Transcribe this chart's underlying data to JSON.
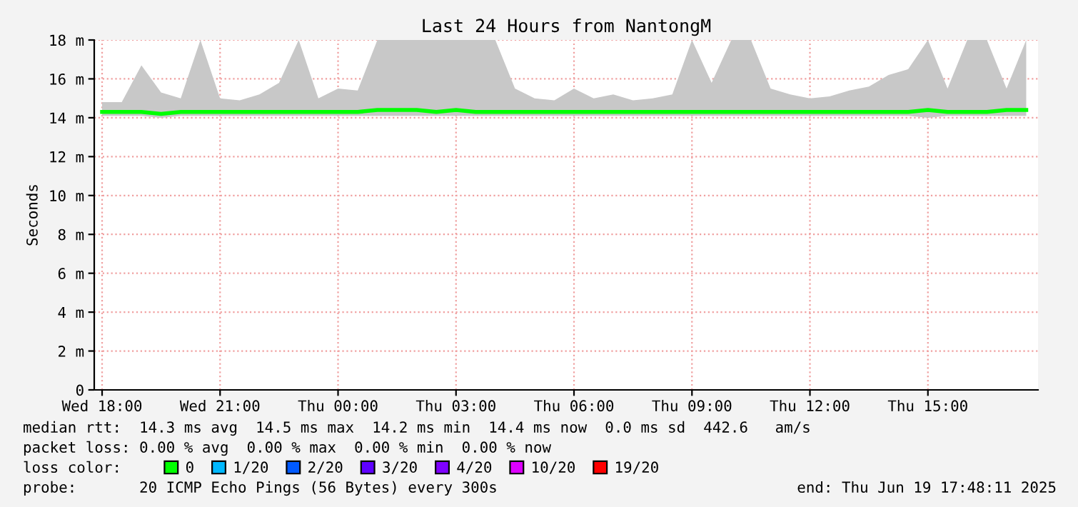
{
  "chart_data": {
    "type": "line",
    "title": "Last 24 Hours from NantongM",
    "ylabel": "Seconds",
    "x": [
      "2025-06-18T18:00",
      "2025-06-18T18:30",
      "2025-06-18T19:00",
      "2025-06-18T19:30",
      "2025-06-18T20:00",
      "2025-06-18T20:30",
      "2025-06-18T21:00",
      "2025-06-18T21:30",
      "2025-06-18T22:00",
      "2025-06-18T22:30",
      "2025-06-18T23:00",
      "2025-06-18T23:30",
      "2025-06-19T00:00",
      "2025-06-19T00:30",
      "2025-06-19T01:00",
      "2025-06-19T01:30",
      "2025-06-19T02:00",
      "2025-06-19T02:30",
      "2025-06-19T03:00",
      "2025-06-19T03:30",
      "2025-06-19T04:00",
      "2025-06-19T04:30",
      "2025-06-19T05:00",
      "2025-06-19T05:30",
      "2025-06-19T06:00",
      "2025-06-19T06:30",
      "2025-06-19T07:00",
      "2025-06-19T07:30",
      "2025-06-19T08:00",
      "2025-06-19T08:30",
      "2025-06-19T09:00",
      "2025-06-19T09:30",
      "2025-06-19T10:00",
      "2025-06-19T10:30",
      "2025-06-19T11:00",
      "2025-06-19T11:30",
      "2025-06-19T12:00",
      "2025-06-19T12:30",
      "2025-06-19T13:00",
      "2025-06-19T13:30",
      "2025-06-19T14:00",
      "2025-06-19T14:30",
      "2025-06-19T15:00",
      "2025-06-19T15:30",
      "2025-06-19T16:00",
      "2025-06-19T16:30",
      "2025-06-19T17:00",
      "2025-06-19T17:30"
    ],
    "series": [
      {
        "name": "0",
        "color": "#00ff00",
        "values": [
          14.3,
          14.3,
          14.3,
          14.2,
          14.3,
          14.3,
          14.3,
          14.3,
          14.3,
          14.3,
          14.3,
          14.3,
          14.3,
          14.3,
          14.4,
          14.4,
          14.4,
          14.3,
          14.4,
          14.3,
          14.3,
          14.3,
          14.3,
          14.3,
          14.3,
          14.3,
          14.3,
          14.3,
          14.3,
          14.3,
          14.3,
          14.3,
          14.3,
          14.3,
          14.3,
          14.3,
          14.3,
          14.3,
          14.3,
          14.3,
          14.3,
          14.3,
          14.4,
          14.3,
          14.3,
          14.3,
          14.4,
          14.4
        ],
        "lower": [
          14.1,
          14.1,
          14.1,
          14.0,
          14.1,
          14.1,
          14.1,
          14.1,
          14.1,
          14.1,
          14.1,
          14.1,
          14.1,
          14.1,
          14.1,
          14.1,
          14.1,
          14.1,
          14.1,
          14.1,
          14.1,
          14.1,
          14.1,
          14.1,
          14.1,
          14.1,
          14.1,
          14.1,
          14.1,
          14.1,
          14.1,
          14.1,
          14.1,
          14.1,
          14.1,
          14.1,
          14.1,
          14.1,
          14.1,
          14.1,
          14.1,
          14.1,
          14.0,
          14.1,
          14.1,
          14.1,
          14.1,
          14.1
        ],
        "upper": [
          14.8,
          14.8,
          16.7,
          15.3,
          15.0,
          18,
          15.0,
          14.9,
          15.2,
          15.8,
          18,
          15.0,
          15.5,
          15.4,
          18,
          18,
          18,
          18,
          18,
          18,
          18,
          15.5,
          15.0,
          14.9,
          15.5,
          15.0,
          15.2,
          14.9,
          15.0,
          15.2,
          18,
          15.8,
          18,
          18,
          15.5,
          15.2,
          15.0,
          15.1,
          15.4,
          15.6,
          16.2,
          16.5,
          18,
          15.5,
          18,
          18,
          15.5,
          18
        ]
      },
      {
        "name": "1/20",
        "color": "#00b8ff",
        "values": [
          null,
          null,
          null,
          null,
          null,
          null,
          null,
          null,
          null,
          null,
          null,
          null,
          null,
          null,
          null,
          null,
          null,
          null,
          null,
          null,
          null,
          null,
          null,
          null,
          null,
          null,
          null,
          null,
          null,
          null,
          null,
          null,
          null,
          null,
          null,
          null,
          null,
          null,
          null,
          null,
          null,
          null,
          null,
          null,
          null,
          null,
          null,
          null
        ]
      },
      {
        "name": "2/20",
        "color": "#0059ff",
        "values": [
          null,
          null,
          null,
          null,
          null,
          null,
          null,
          null,
          null,
          null,
          null,
          null,
          null,
          null,
          null,
          null,
          null,
          null,
          null,
          null,
          null,
          null,
          null,
          null,
          null,
          null,
          null,
          null,
          null,
          null,
          null,
          null,
          null,
          null,
          null,
          null,
          null,
          null,
          null,
          null,
          null,
          null,
          null,
          null,
          null,
          null,
          null,
          null
        ]
      },
      {
        "name": "3/20",
        "color": "#5e00ff",
        "values": [
          null,
          null,
          null,
          null,
          null,
          null,
          null,
          null,
          null,
          null,
          null,
          null,
          null,
          null,
          null,
          null,
          null,
          null,
          null,
          null,
          null,
          null,
          null,
          null,
          null,
          null,
          null,
          null,
          null,
          null,
          null,
          null,
          null,
          null,
          null,
          null,
          null,
          null,
          null,
          null,
          null,
          null,
          null,
          null,
          null,
          null,
          null,
          null
        ]
      },
      {
        "name": "4/20",
        "color": "#7e00ff",
        "values": [
          null,
          null,
          null,
          null,
          null,
          null,
          null,
          null,
          null,
          null,
          null,
          null,
          null,
          null,
          null,
          null,
          null,
          null,
          null,
          null,
          null,
          null,
          null,
          null,
          null,
          null,
          null,
          null,
          null,
          null,
          null,
          null,
          null,
          null,
          null,
          null,
          null,
          null,
          null,
          null,
          null,
          null,
          null,
          null,
          null,
          null,
          null,
          null
        ]
      },
      {
        "name": "10/20",
        "color": "#dd00ff",
        "values": [
          null,
          null,
          null,
          null,
          null,
          null,
          null,
          null,
          null,
          null,
          null,
          null,
          null,
          null,
          null,
          null,
          null,
          null,
          null,
          null,
          null,
          null,
          null,
          null,
          null,
          null,
          null,
          null,
          null,
          null,
          null,
          null,
          null,
          null,
          null,
          null,
          null,
          null,
          null,
          null,
          null,
          null,
          null,
          null,
          null,
          null,
          null,
          null
        ]
      },
      {
        "name": "19/20",
        "color": "#ff0000",
        "values": [
          null,
          null,
          null,
          null,
          null,
          null,
          null,
          null,
          null,
          null,
          null,
          null,
          null,
          null,
          null,
          null,
          null,
          null,
          null,
          null,
          null,
          null,
          null,
          null,
          null,
          null,
          null,
          null,
          null,
          null,
          null,
          null,
          null,
          null,
          null,
          null,
          null,
          null,
          null,
          null,
          null,
          null,
          null,
          null,
          null,
          null,
          null,
          null
        ]
      }
    ],
    "xlim": [
      "2025-06-18T17:48",
      "2025-06-19T17:48"
    ],
    "xticks": [
      {
        "value": "2025-06-18T18:00",
        "label": "Wed 18:00"
      },
      {
        "value": "2025-06-18T21:00",
        "label": "Wed 21:00"
      },
      {
        "value": "2025-06-19T00:00",
        "label": "Thu 00:00"
      },
      {
        "value": "2025-06-19T03:00",
        "label": "Thu 03:00"
      },
      {
        "value": "2025-06-19T06:00",
        "label": "Thu 06:00"
      },
      {
        "value": "2025-06-19T09:00",
        "label": "Thu 09:00"
      },
      {
        "value": "2025-06-19T12:00",
        "label": "Thu 12:00"
      },
      {
        "value": "2025-06-19T15:00",
        "label": "Thu 15:00"
      }
    ],
    "ylim": [
      0,
      18
    ],
    "yticks": [
      0,
      {
        "value": 2,
        "label": "2 m"
      },
      {
        "value": 4,
        "label": "4 m"
      },
      {
        "value": 6,
        "label": "6 m"
      },
      {
        "value": 8,
        "label": "8 m"
      },
      {
        "value": 10,
        "label": "10 m"
      },
      {
        "value": 12,
        "label": "12 m"
      },
      {
        "value": 14,
        "label": "14 m"
      },
      {
        "value": 16,
        "label": "16 m"
      },
      {
        "value": 18,
        "label": "18 m"
      }
    ],
    "grid": true,
    "legend": "bottom",
    "legend_title": "loss color:",
    "marker": "none",
    "line_style": "solid",
    "annotations": [
      "median rtt:  14.3 ms avg  14.5 ms max  14.2 ms min  14.4 ms now  0.0 ms sd  442.6   am/s",
      "packet loss: 0.00 % avg  0.00 % max  0.00 % min  0.00 % now",
      "probe:       20 ICMP Echo Pings (56 Bytes) every 300s",
      "end: Thu Jun 19 17:48:11 2025"
    ]
  }
}
